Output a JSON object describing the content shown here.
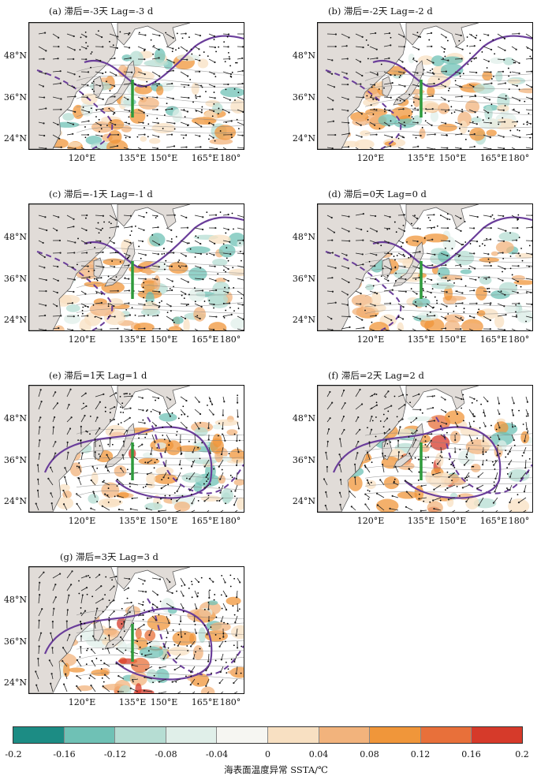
{
  "panels": [
    {
      "title": "(a) 滞后=-3天 Lag=-3 d"
    },
    {
      "title": "(b) 滞后=-2天 Lag=-2 d"
    },
    {
      "title": "(c) 滞后=-1天 Lag=-1 d"
    },
    {
      "title": "(d) 滞后=0天 Lag=0 d"
    },
    {
      "title": "(e) 滞后=1天 Lag=1 d"
    },
    {
      "title": "(f) 滞后=2天 Lag=2 d"
    },
    {
      "title": "(g) 滞后=3天 Lag=3 d"
    }
  ],
  "axes": {
    "lat_labels": [
      "48°N",
      "36°N",
      "24°N"
    ],
    "lon_labels": [
      "120°E",
      "135°E",
      "150°E",
      "165°E",
      "180°"
    ]
  },
  "colorbar": {
    "title": "海表面温度异常 SSTA/℃",
    "tick_labels": [
      "-0.2",
      "-0.16",
      "-0.12",
      "-0.08",
      "-0.04",
      "0",
      "0.04",
      "0.08",
      "0.12",
      "0.16",
      "0.2"
    ],
    "colors": [
      "#1c8c84",
      "#6fc1b5",
      "#b6ddd3",
      "#e0efe9",
      "#f6f6f2",
      "#f8e0c2",
      "#f2b37c",
      "#f0963a",
      "#e8703a",
      "#d63a2a"
    ]
  },
  "colors": {
    "land": "#e1dcd8",
    "ocean": "#ffffff",
    "contour_purple": "#6a3d9a",
    "marker_green": "#2e9a3c",
    "vector": "#222222",
    "stipple": "#000000"
  }
}
